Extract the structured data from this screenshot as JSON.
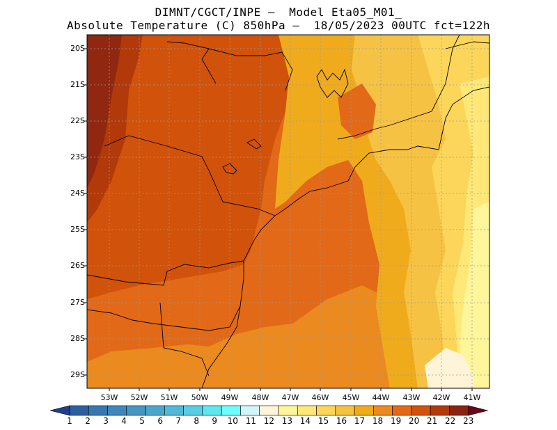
{
  "title_line1": "DIMNT/CGCT/INPE –  Model Eta05_M01_",
  "title_line2": "Absolute Temperature (C) 850hPa –  18/05/2023 00UTC fct=122h",
  "map": {
    "lat_labels": [
      "20S",
      "21S",
      "22S",
      "23S",
      "24S",
      "25S",
      "26S",
      "27S",
      "28S",
      "29S"
    ],
    "lon_labels": [
      "53W",
      "52W",
      "51W",
      "50W",
      "49W",
      "48W",
      "47W",
      "46W",
      "45W",
      "44W",
      "43W",
      "42W",
      "41W"
    ],
    "land_outline_color": "#000000",
    "grid": "dotted"
  },
  "colorbar": {
    "labels": [
      "1",
      "2",
      "3",
      "4",
      "5",
      "6",
      "7",
      "8",
      "9",
      "10",
      "11",
      "12",
      "13",
      "14",
      "15",
      "16",
      "17",
      "18",
      "19",
      "20",
      "21",
      "22",
      "23"
    ],
    "colors": [
      "#1f3e8c",
      "#2d5ea0",
      "#3777b0",
      "#3f87ba",
      "#4696c3",
      "#4ca6cc",
      "#52b8d8",
      "#58cde5",
      "#5fe6f1",
      "#6ffcfc",
      "#d2f5fb",
      "#fff4d8",
      "#fff59a",
      "#ffe877",
      "#fcd65a",
      "#f6c243",
      "#f0ab1d",
      "#ea8a1f",
      "#e26917",
      "#d1520a",
      "#b2390a",
      "#8a2412",
      "#6b0519"
    ]
  }
}
